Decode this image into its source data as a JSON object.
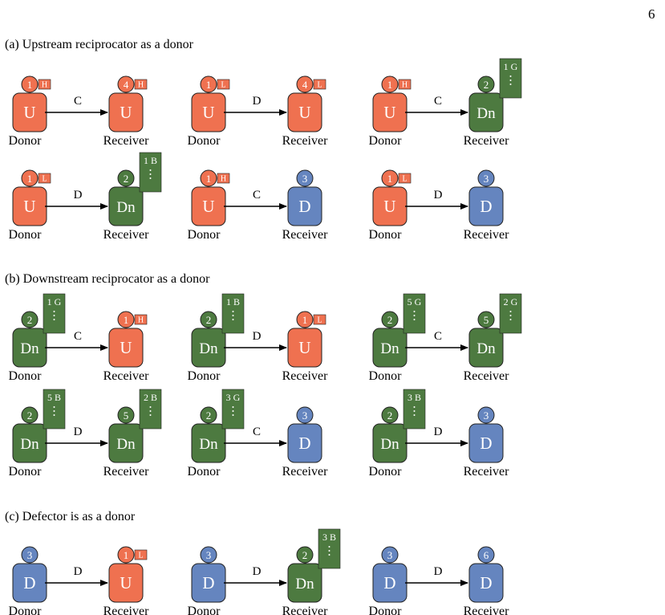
{
  "page_number": "6",
  "colors": {
    "U": "#ef7150",
    "Dn": "#4d7a40",
    "D": "#6585bf",
    "outline": "#222222"
  },
  "sections": [
    {
      "title": "(a) Upstream reciprocator as a donor",
      "interactions": [
        {
          "donor": {
            "type": "U",
            "letter": "U",
            "num": "1",
            "tag": "H"
          },
          "action": "C",
          "receiver": {
            "type": "U",
            "letter": "U",
            "num": "4",
            "tag": "H"
          },
          "donor_label": "Donor",
          "receiver_label": "Receiver"
        },
        {
          "donor": {
            "type": "U",
            "letter": "U",
            "num": "1",
            "tag": "L"
          },
          "action": "D",
          "receiver": {
            "type": "U",
            "letter": "U",
            "num": "4",
            "tag": "L"
          },
          "donor_label": "Donor",
          "receiver_label": "Receiver"
        },
        {
          "donor": {
            "type": "U",
            "letter": "U",
            "num": "1",
            "tag": "H"
          },
          "action": "C",
          "receiver": {
            "type": "Dn",
            "letter": "Dn",
            "num": "2",
            "card": "1 G"
          },
          "donor_label": "Donor",
          "receiver_label": "Receiver"
        },
        {
          "donor": {
            "type": "U",
            "letter": "U",
            "num": "1",
            "tag": "L"
          },
          "action": "D",
          "receiver": {
            "type": "Dn",
            "letter": "Dn",
            "num": "2",
            "card": "1 B"
          },
          "donor_label": "Donor",
          "receiver_label": "Receiver"
        },
        {
          "donor": {
            "type": "U",
            "letter": "U",
            "num": "1",
            "tag": "H"
          },
          "action": "C",
          "receiver": {
            "type": "D",
            "letter": "D",
            "num": "3"
          },
          "donor_label": "Donor",
          "receiver_label": "Receiver"
        },
        {
          "donor": {
            "type": "U",
            "letter": "U",
            "num": "1",
            "tag": "L"
          },
          "action": "D",
          "receiver": {
            "type": "D",
            "letter": "D",
            "num": "3"
          },
          "donor_label": "Donor",
          "receiver_label": "Receiver"
        }
      ]
    },
    {
      "title": "(b) Downstream reciprocator as a donor",
      "interactions": [
        {
          "donor": {
            "type": "Dn",
            "letter": "Dn",
            "num": "2",
            "card": "1 G"
          },
          "action": "C",
          "receiver": {
            "type": "U",
            "letter": "U",
            "num": "1",
            "tag": "H"
          },
          "donor_label": "Donor",
          "receiver_label": "Receiver"
        },
        {
          "donor": {
            "type": "Dn",
            "letter": "Dn",
            "num": "2",
            "card": "1 B"
          },
          "action": "D",
          "receiver": {
            "type": "U",
            "letter": "U",
            "num": "1",
            "tag": "L"
          },
          "donor_label": "Donor",
          "receiver_label": "Receiver"
        },
        {
          "donor": {
            "type": "Dn",
            "letter": "Dn",
            "num": "2",
            "card": "5 G"
          },
          "action": "C",
          "receiver": {
            "type": "Dn",
            "letter": "Dn",
            "num": "5",
            "card": "2 G"
          },
          "donor_label": "Donor",
          "receiver_label": "Receiver"
        },
        {
          "donor": {
            "type": "Dn",
            "letter": "Dn",
            "num": "2",
            "card": "5 B"
          },
          "action": "D",
          "receiver": {
            "type": "Dn",
            "letter": "Dn",
            "num": "5",
            "card": "2 B"
          },
          "donor_label": "Donor",
          "receiver_label": "Receiver"
        },
        {
          "donor": {
            "type": "Dn",
            "letter": "Dn",
            "num": "2",
            "card": "3 G"
          },
          "action": "C",
          "receiver": {
            "type": "D",
            "letter": "D",
            "num": "3"
          },
          "donor_label": "Donor",
          "receiver_label": "Receiver"
        },
        {
          "donor": {
            "type": "Dn",
            "letter": "Dn",
            "num": "2",
            "card": "3 B"
          },
          "action": "D",
          "receiver": {
            "type": "D",
            "letter": "D",
            "num": "3"
          },
          "donor_label": "Donor",
          "receiver_label": "Receiver"
        }
      ]
    },
    {
      "title": "(c) Defector is as a donor",
      "interactions": [
        {
          "donor": {
            "type": "D",
            "letter": "D",
            "num": "3"
          },
          "action": "D",
          "receiver": {
            "type": "U",
            "letter": "U",
            "num": "1",
            "tag": "L"
          },
          "donor_label": "Donor",
          "receiver_label": "Receiver"
        },
        {
          "donor": {
            "type": "D",
            "letter": "D",
            "num": "3"
          },
          "action": "D",
          "receiver": {
            "type": "Dn",
            "letter": "Dn",
            "num": "2",
            "card": "3 B"
          },
          "donor_label": "Donor",
          "receiver_label": "Receiver"
        },
        {
          "donor": {
            "type": "D",
            "letter": "D",
            "num": "3"
          },
          "action": "D",
          "receiver": {
            "type": "D",
            "letter": "D",
            "num": "6"
          },
          "donor_label": "Donor",
          "receiver_label": "Receiver"
        }
      ]
    }
  ]
}
